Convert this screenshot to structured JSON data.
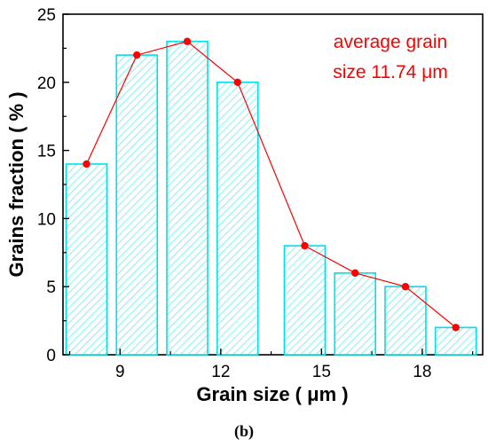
{
  "chart_data": {
    "type": "bar",
    "categories": [
      "8",
      "9.5",
      "11",
      "12.5",
      "14.5",
      "16",
      "17.5",
      "19"
    ],
    "x": [
      8,
      9.5,
      11,
      12.5,
      14.5,
      16,
      17.5,
      19
    ],
    "values": [
      14,
      22,
      23,
      20,
      8,
      6,
      5,
      2
    ],
    "overlay_line": {
      "x": [
        8,
        9.5,
        11,
        12.5,
        14.5,
        16,
        17.5,
        19
      ],
      "values": [
        14,
        22,
        23,
        20,
        8,
        6,
        5,
        2
      ]
    },
    "xlabel": "Grain size ( μm )",
    "ylabel": "Grains fraction ( % )",
    "xlim": [
      7.3,
      19.8
    ],
    "ylim": [
      0,
      25
    ],
    "xticks": [
      "9",
      "12",
      "15",
      "18"
    ],
    "yticks": [
      "0",
      "5",
      "10",
      "15",
      "20",
      "25"
    ],
    "annotation": [
      "average grain",
      "size 11.74 μm"
    ],
    "panel_label": "(b)",
    "grid": false,
    "colors": {
      "bar_edge": "#00e0e8",
      "bar_hatch": "#66eef2",
      "line": "#ff0000",
      "marker": "#ff0000",
      "annotation": "#ff0000"
    }
  }
}
